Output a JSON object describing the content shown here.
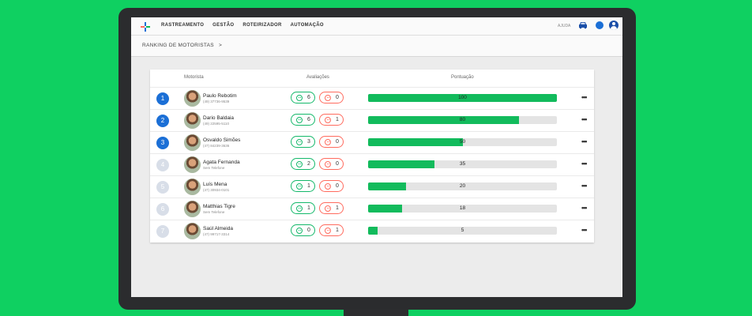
{
  "nav": [
    "RASTREAMENTO",
    "GESTÃO",
    "ROTEIRIZADOR",
    "AUTOMAÇÃO"
  ],
  "help": "AJUDA",
  "breadcrumb": {
    "label": "RANKING DE MOTORISTAS",
    "separator": ">"
  },
  "headers": {
    "driver": "Motorista",
    "ratings": "Avaliações",
    "score": "Pontuação"
  },
  "menu_icon": "•••",
  "colors": {
    "top_rank": "#1b6fd6",
    "other_rank": "#d8dee8",
    "good": "#14b86a",
    "bad": "#ff6b5e",
    "bar": "#12bb5c"
  },
  "drivers": [
    {
      "rank": "1",
      "name": "Paulo Rebotim",
      "phone": "(49) 37736-9539",
      "good": "6",
      "bad": "0",
      "score": "100",
      "score_pct": 100
    },
    {
      "rank": "2",
      "name": "Dario Baldaia",
      "phone": "(49) 22595-5110",
      "good": "6",
      "bad": "1",
      "score": "80",
      "score_pct": 80
    },
    {
      "rank": "3",
      "name": "Osvaldo Simões",
      "phone": "(47) 84239-3636",
      "good": "3",
      "bad": "0",
      "score": "50",
      "score_pct": 50
    },
    {
      "rank": "4",
      "name": "Agata Fernanda",
      "phone": "Sem Telefone",
      "good": "2",
      "bad": "0",
      "score": "35",
      "score_pct": 35
    },
    {
      "rank": "5",
      "name": "Luís Mena",
      "phone": "(47) 30934-0101",
      "good": "1",
      "bad": "0",
      "score": "20",
      "score_pct": 20
    },
    {
      "rank": "6",
      "name": "Matthias Tigre",
      "phone": "Sem Telefone",
      "good": "1",
      "bad": "1",
      "score": "18",
      "score_pct": 18
    },
    {
      "rank": "7",
      "name": "Saúl Almeida",
      "phone": "(47) 99717-3314",
      "good": "0",
      "bad": "1",
      "score": "5",
      "score_pct": 5
    }
  ]
}
